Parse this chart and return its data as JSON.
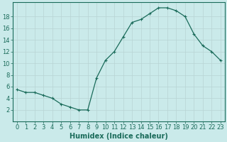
{
  "x": [
    0,
    1,
    2,
    3,
    4,
    5,
    6,
    7,
    8,
    9,
    10,
    11,
    12,
    13,
    14,
    15,
    16,
    17,
    18,
    19,
    20,
    21,
    22,
    23
  ],
  "y": [
    5.5,
    5.0,
    5.0,
    4.5,
    4.0,
    3.0,
    2.5,
    2.0,
    2.0,
    7.5,
    10.5,
    12.0,
    14.5,
    17.0,
    17.5,
    18.5,
    19.5,
    19.5,
    19.0,
    18.0,
    15.0,
    13.0,
    12.0,
    10.5
  ],
  "line_color": "#1a6b5a",
  "marker": "+",
  "marker_size": 3,
  "marker_linewidth": 0.8,
  "linewidth": 0.9,
  "xlabel": "Humidex (Indice chaleur)",
  "xlabel_fontsize": 7,
  "ylabel_ticks": [
    2,
    4,
    6,
    8,
    10,
    12,
    14,
    16,
    18
  ],
  "xlim": [
    -0.5,
    23.5
  ],
  "ylim": [
    0,
    20.5
  ],
  "bg_color": "#caeaea",
  "grid_color": "#b8d4d4",
  "tick_fontsize": 6,
  "tick_color": "#1a6b5a"
}
